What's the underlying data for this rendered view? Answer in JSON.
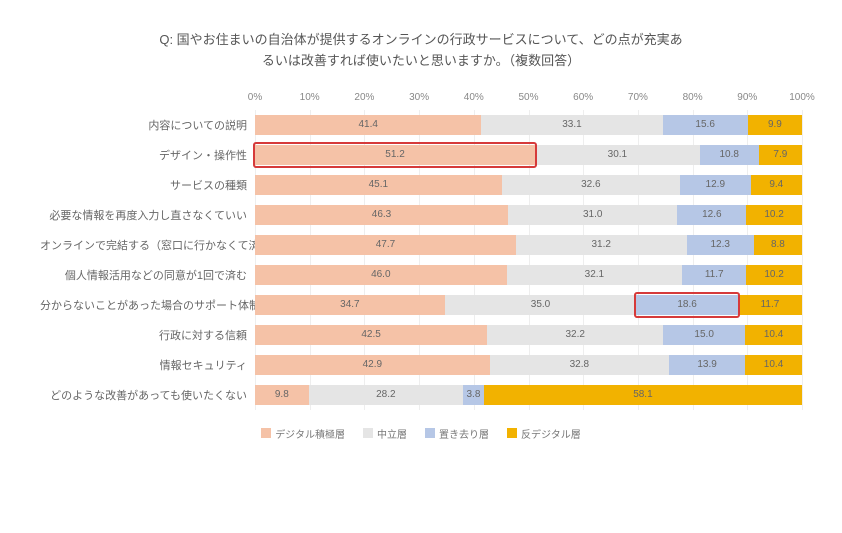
{
  "title_line1": "Q: 国やお住まいの自治体が提供するオンラインの行政サービスについて、どの点が充実あ",
  "title_line2": "るいは改善すれば使いたいと思いますか。（複数回答）",
  "chart": {
    "type": "stacked-bar-horizontal-100pct",
    "xlim": [
      0,
      100
    ],
    "xtick_step": 10,
    "xtick_suffix": "%",
    "grid_color": "#eeeeee",
    "background_color": "#ffffff",
    "label_fontsize": 11,
    "value_fontsize": 10,
    "series": [
      {
        "key": "s1",
        "label": "デジタル積極層",
        "color": "#f5c2a7"
      },
      {
        "key": "s2",
        "label": "中立層",
        "color": "#e5e5e5"
      },
      {
        "key": "s3",
        "label": "置き去り層",
        "color": "#b6c7e6"
      },
      {
        "key": "s4",
        "label": "反デジタル層",
        "color": "#f2b200"
      }
    ],
    "categories": [
      {
        "label": "内容についての説明",
        "values": [
          41.4,
          33.1,
          15.6,
          9.9
        ]
      },
      {
        "label": "デザイン・操作性",
        "values": [
          51.2,
          30.1,
          10.8,
          7.9
        ]
      },
      {
        "label": "サービスの種類",
        "values": [
          45.1,
          32.6,
          12.9,
          9.4
        ]
      },
      {
        "label": "必要な情報を再度入力し直さなくていい",
        "values": [
          46.3,
          31.0,
          12.6,
          10.2
        ]
      },
      {
        "label": "オンラインで完結する（窓口に行かなくて済む）",
        "values": [
          47.7,
          31.2,
          12.3,
          8.8
        ]
      },
      {
        "label": "個人情報活用などの同意が1回で済む",
        "values": [
          46.0,
          32.1,
          11.7,
          10.2
        ]
      },
      {
        "label": "分からないことがあった場合のサポート体制",
        "values": [
          34.7,
          35.0,
          18.6,
          11.7
        ]
      },
      {
        "label": "行政に対する信頼",
        "values": [
          42.5,
          32.2,
          15.0,
          10.4
        ]
      },
      {
        "label": "情報セキュリティ",
        "values": [
          42.9,
          32.8,
          13.9,
          10.4
        ]
      },
      {
        "label": "どのような改善があっても使いたくない",
        "values": [
          9.8,
          28.2,
          3.8,
          58.1
        ]
      }
    ],
    "highlights": [
      {
        "row_index": 1,
        "seg_start": 0,
        "seg_end": 1,
        "color": "#d63a3a"
      },
      {
        "row_index": 6,
        "seg_start": 2,
        "seg_end": 3,
        "color": "#d63a3a"
      }
    ]
  }
}
